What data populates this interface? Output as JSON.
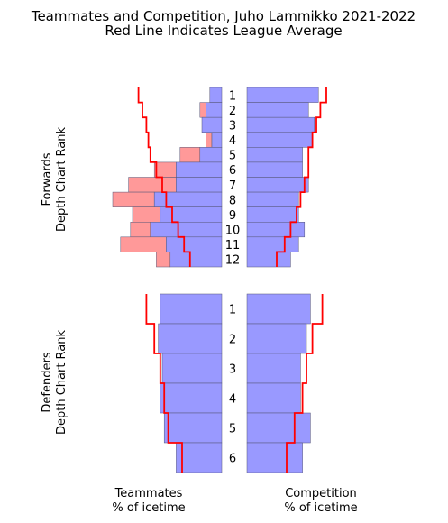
{
  "chart_data": {
    "type": "bar",
    "title_line1": "Teammates and Competition, Juho Lammikko 2021-2022",
    "title_line2": "Red Line Indicates League Average",
    "left_xlabel_line1": "Teammates",
    "left_xlabel_line2": "% of icetime",
    "right_xlabel_line1": "Competition",
    "right_xlabel_line2": "% of icetime",
    "colors": {
      "blue_bar": "#9999ff",
      "red_bar": "#ff9999",
      "league_line": "#ff0000",
      "bar_edge": "#555577"
    },
    "forwards": {
      "ylabel_line1": "Forwards",
      "ylabel_line2": "Depth Chart Rank",
      "ranks": [
        "1",
        "2",
        "3",
        "4",
        "5",
        "6",
        "7",
        "8",
        "9",
        "10",
        "11",
        "12"
      ],
      "teammates_blue": [
        0.06,
        0.08,
        0.1,
        0.05,
        0.11,
        0.23,
        0.23,
        0.34,
        0.31,
        0.36,
        0.28,
        0.26
      ],
      "teammates_red": [
        0.0,
        0.03,
        0.0,
        0.03,
        0.1,
        0.11,
        0.24,
        0.21,
        0.14,
        0.1,
        0.23,
        0.07
      ],
      "teammates_league": [
        0.42,
        0.4,
        0.38,
        0.37,
        0.36,
        0.33,
        0.3,
        0.28,
        0.25,
        0.22,
        0.19,
        0.16
      ],
      "competition_blue": [
        0.36,
        0.31,
        0.34,
        0.33,
        0.28,
        0.28,
        0.31,
        0.26,
        0.26,
        0.29,
        0.26,
        0.22
      ],
      "competition_league": [
        0.4,
        0.37,
        0.35,
        0.33,
        0.31,
        0.31,
        0.29,
        0.27,
        0.25,
        0.22,
        0.19,
        0.15
      ]
    },
    "defenders": {
      "ylabel_line1": "Defenders",
      "ylabel_line2": "Depth Chart Rank",
      "ranks": [
        "1",
        "2",
        "3",
        "4",
        "5",
        "6"
      ],
      "teammates_blue": [
        0.31,
        0.32,
        0.3,
        0.31,
        0.29,
        0.23
      ],
      "teammates_red": [
        0.0,
        0.0,
        0.0,
        0.0,
        0.0,
        0.0
      ],
      "teammates_league": [
        0.38,
        0.34,
        0.31,
        0.29,
        0.27,
        0.2
      ],
      "competition_blue": [
        0.32,
        0.3,
        0.27,
        0.27,
        0.32,
        0.28
      ],
      "competition_league": [
        0.38,
        0.33,
        0.3,
        0.28,
        0.24,
        0.2
      ]
    }
  }
}
